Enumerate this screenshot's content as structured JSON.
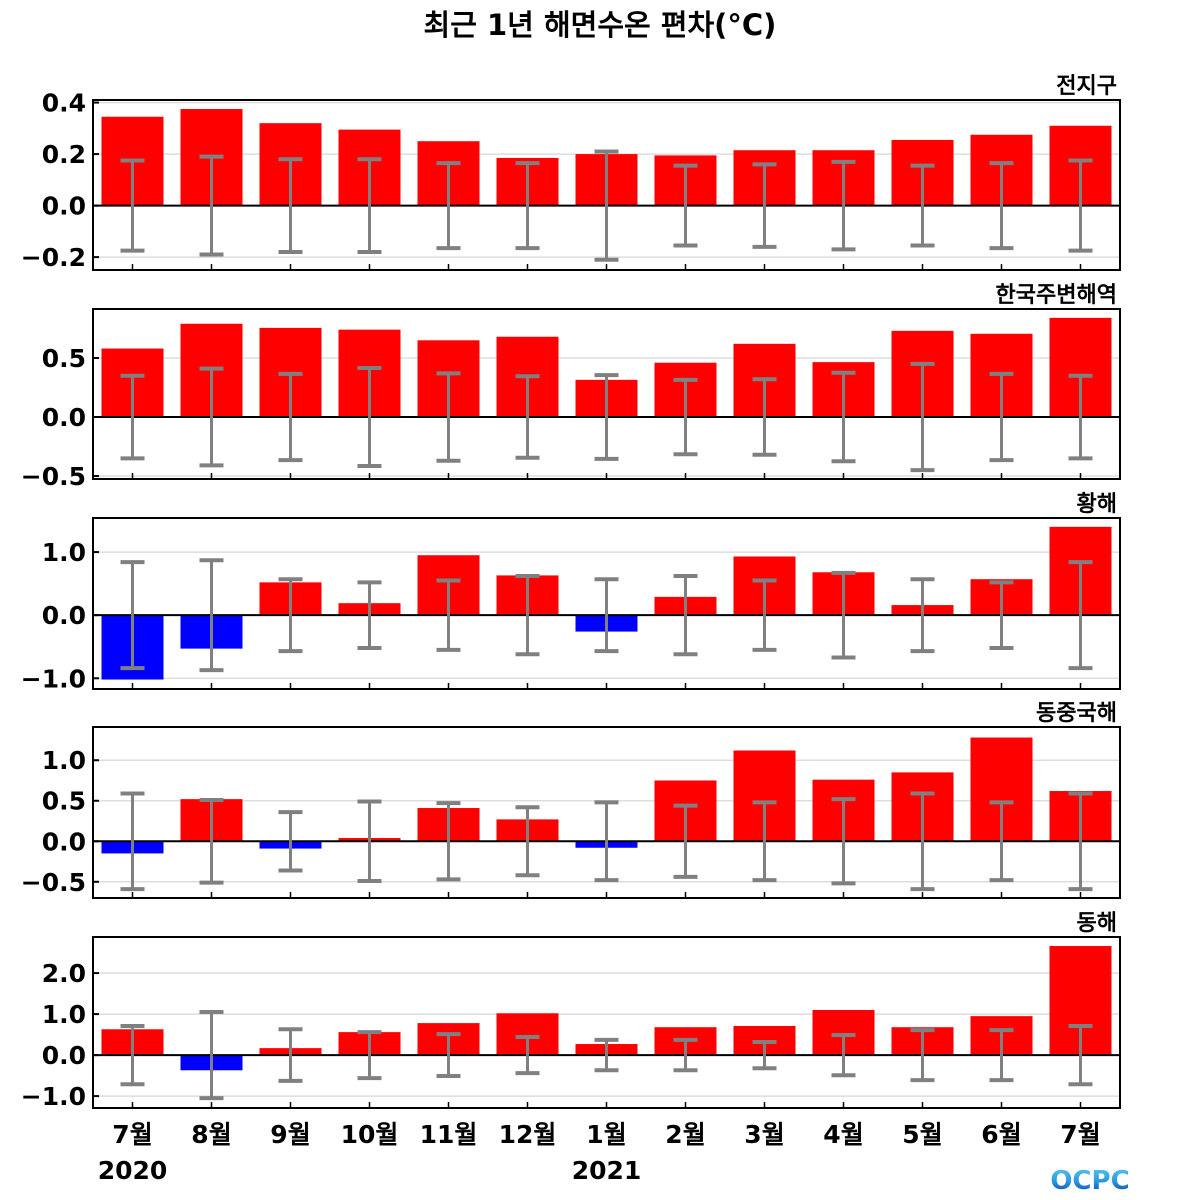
{
  "title": "최근 1년 해면수온 편차(°C)",
  "logo_text": "OCPC",
  "chart_data": [
    {
      "type": "bar",
      "panel_label": "전지구",
      "categories": [
        "7월",
        "8월",
        "9월",
        "10월",
        "11월",
        "12월",
        "1월",
        "2월",
        "3월",
        "4월",
        "5월",
        "6월",
        "7월"
      ],
      "values": [
        0.345,
        0.375,
        0.32,
        0.295,
        0.25,
        0.185,
        0.2,
        0.195,
        0.215,
        0.215,
        0.255,
        0.275,
        0.31
      ],
      "error": [
        0.175,
        0.19,
        0.18,
        0.18,
        0.165,
        0.165,
        0.21,
        0.155,
        0.16,
        0.17,
        0.155,
        0.165,
        0.175
      ],
      "yticks": [
        -0.2,
        0.0,
        0.2,
        0.4
      ],
      "ytick_labels": [
        "−0.2",
        "0.0",
        "0.2",
        "0.4"
      ],
      "ylim": [
        -0.25,
        0.41
      ]
    },
    {
      "type": "bar",
      "panel_label": "한국주변해역",
      "values": [
        0.58,
        0.79,
        0.755,
        0.74,
        0.65,
        0.68,
        0.315,
        0.46,
        0.62,
        0.465,
        0.73,
        0.705,
        0.84
      ],
      "error": [
        0.35,
        0.41,
        0.365,
        0.415,
        0.37,
        0.345,
        0.355,
        0.315,
        0.32,
        0.375,
        0.45,
        0.365,
        0.35
      ],
      "yticks": [
        -0.5,
        0.0,
        0.5
      ],
      "ytick_labels": [
        "−0.5",
        "0.0",
        "0.5"
      ],
      "ylim": [
        -0.525,
        0.915
      ]
    },
    {
      "type": "bar",
      "panel_label": "황해",
      "values": [
        -1.02,
        -0.53,
        0.52,
        0.19,
        0.95,
        0.63,
        -0.26,
        0.29,
        0.93,
        0.68,
        0.16,
        0.57,
        1.4
      ],
      "error": [
        0.84,
        0.87,
        0.57,
        0.52,
        0.55,
        0.62,
        0.57,
        0.62,
        0.55,
        0.67,
        0.57,
        0.52,
        0.84
      ],
      "yticks": [
        -1.0,
        0.0,
        1.0
      ],
      "ytick_labels": [
        "−1.0",
        "0.0",
        "1.0"
      ],
      "ylim": [
        -1.17,
        1.54
      ]
    },
    {
      "type": "bar",
      "panel_label": "동중국해",
      "values": [
        -0.15,
        0.52,
        -0.09,
        0.04,
        0.41,
        0.27,
        -0.08,
        0.75,
        1.12,
        0.76,
        0.85,
        1.28,
        0.62
      ],
      "error": [
        0.59,
        0.51,
        0.36,
        0.49,
        0.47,
        0.42,
        0.48,
        0.44,
        0.48,
        0.52,
        0.59,
        0.48,
        0.59
      ],
      "yticks": [
        -0.5,
        0.0,
        0.5,
        1.0
      ],
      "ytick_labels": [
        "−0.5",
        "0.0",
        "0.5",
        "1.0"
      ],
      "ylim": [
        -0.7,
        1.41
      ]
    },
    {
      "type": "bar",
      "panel_label": "동해",
      "values": [
        0.63,
        -0.37,
        0.17,
        0.56,
        0.78,
        1.02,
        0.27,
        0.68,
        0.71,
        1.1,
        0.68,
        0.95,
        2.66
      ],
      "error": [
        0.71,
        1.05,
        0.63,
        0.56,
        0.51,
        0.44,
        0.37,
        0.37,
        0.32,
        0.49,
        0.61,
        0.61,
        0.71
      ],
      "yticks": [
        -1.0,
        0.0,
        1.0,
        2.0
      ],
      "ytick_labels": [
        "−1.0",
        "0.0",
        "1.0",
        "2.0"
      ],
      "ylim": [
        -1.29,
        2.88
      ]
    }
  ],
  "x_labels": [
    "7월",
    "8월",
    "9월",
    "10월",
    "11월",
    "12월",
    "1월",
    "2월",
    "3월",
    "4월",
    "5월",
    "6월",
    "7월"
  ],
  "year_labels": [
    {
      "index": 0,
      "text": "2020"
    },
    {
      "index": 6,
      "text": "2021"
    }
  ],
  "colors": {
    "positive": "#ff0000",
    "negative": "#0000ff",
    "error_bar": "#808080",
    "grid": "#dddddd",
    "zero_line": "#000000"
  }
}
